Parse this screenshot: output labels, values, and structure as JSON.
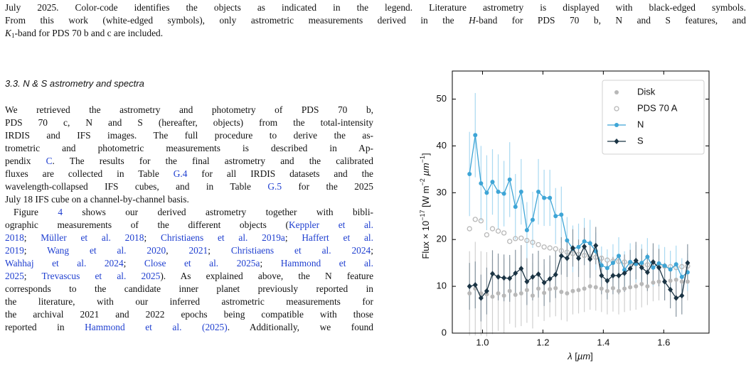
{
  "caption": [
    [
      "July 2025. Color-code identifies the objects as indicated in the legend. Literature astrometry is displayed with black-edged symbols."
    ],
    [
      "From this work (white-edged symbols), only astrometric measurements derived in the ",
      "H",
      "-band for PDS 70 b, N and S features, and"
    ],
    [
      "K",
      "1",
      "-band for PDS 70 b and c are included."
    ]
  ],
  "heading": "3.3. N & S astrometry and spectra",
  "paragraphs": [
    [
      [
        "We retrieved the astrometry and photometry of PDS 70 b,"
      ],
      [
        "PDS 70 c, N and S (hereafter, objects) from the total-intensity"
      ],
      [
        "IRDIS and IFS images. The full procedure to derive the as-"
      ],
      [
        "trometric and photometric measurements is described in Ap-"
      ],
      [
        "pendix ",
        "C",
        ". The results for the final astrometry and the calibrated"
      ],
      [
        "fluxes are collected in Table ",
        "G.4",
        " for all IRDIS datasets and the"
      ],
      [
        "wavelength-collapsed IFS cubes, and in Table ",
        "G.5",
        " for the 2025"
      ],
      [
        "July 18 IFS cube on a channel-by-channel basis."
      ]
    ],
    [
      [
        "Figure ",
        "4",
        " shows our derived astrometry together with bibli-"
      ],
      [
        "ographic measurements of the different objects (",
        "Keppler et al."
      ],
      [
        "2018",
        "; ",
        "Müller et al. 2018",
        "; ",
        "Christiaens et al. 2019a",
        "; ",
        "Haffert et al."
      ],
      [
        "2019",
        "; ",
        "Wang et al. 2020",
        ", ",
        "2021",
        "; ",
        "Christiaens et al. 2024",
        ";"
      ],
      [
        "Wahhaj et al. 2024",
        "; ",
        "Close et al. 2025a",
        "; ",
        "Hammond et al."
      ],
      [
        "2025",
        "; ",
        "Trevascus et al. 2025",
        "). As explained above, the N feature"
      ],
      [
        "corresponds to the candidate inner planet previously reported in"
      ],
      [
        "the literature, with our inferred astrometric measurements for"
      ],
      [
        "the archival 2021 and 2022 epochs being compatible with those"
      ],
      [
        "reported in ",
        "Hammond et al. (2025)",
        ". Additionally, we found"
      ]
    ]
  ],
  "chart_data": {
    "type": "errorbar",
    "xlabel": [
      "λ",
      " [",
      "µm",
      "]"
    ],
    "ylabel": [
      "Flux × 10",
      "−17",
      " [W m",
      "−2",
      " µm",
      "−1",
      "]"
    ],
    "xlim": [
      0.9,
      1.75
    ],
    "ylim": [
      0,
      56
    ],
    "xticks": [
      {
        "value": 1,
        "label": "1.0"
      },
      1.2,
      1.4,
      1.6
    ],
    "yticks": [
      0,
      10,
      20,
      30,
      40,
      50
    ],
    "legend": "upper right",
    "x": [
      0.957,
      0.976,
      0.995,
      1.014,
      1.033,
      1.052,
      1.071,
      1.09,
      1.109,
      1.128,
      1.147,
      1.166,
      1.185,
      1.204,
      1.223,
      1.242,
      1.261,
      1.28,
      1.299,
      1.318,
      1.337,
      1.356,
      1.375,
      1.394,
      1.413,
      1.432,
      1.451,
      1.47,
      1.489,
      1.508,
      1.527,
      1.546,
      1.565,
      1.584,
      1.603,
      1.622,
      1.641,
      1.66,
      1.679
    ],
    "series": [
      {
        "name": "Disk",
        "color": "#b8b8b8",
        "marker": "circle",
        "line": false,
        "values": [
          8.5,
          9.5,
          8.5,
          8.3,
          7.8,
          8.5,
          8,
          9,
          8.2,
          8.5,
          9.2,
          8,
          9.5,
          8.6,
          9.4,
          9.6,
          8.8,
          8.5,
          9,
          9.2,
          9.5,
          10,
          9.8,
          9.5,
          9,
          9.6,
          9,
          9.5,
          9.8,
          10,
          10.5,
          10,
          10.8,
          11,
          11,
          11.2,
          11.4,
          11,
          11
        ],
        "errors": [
          9,
          10,
          9,
          9,
          8,
          8,
          8,
          7,
          7,
          7,
          7,
          7,
          6,
          6,
          6,
          6,
          6,
          6,
          5,
          5,
          5,
          5,
          5,
          5,
          5,
          5,
          5,
          5,
          5,
          5,
          5,
          4,
          4,
          4,
          4,
          4,
          4,
          4,
          4
        ]
      },
      {
        "name": "PDS 70 A",
        "color": "#b8b8b8",
        "marker": "open-circle",
        "line": false,
        "values": [
          22.3,
          24.3,
          24,
          21,
          22.3,
          21.8,
          21.4,
          19.6,
          20.2,
          20.3,
          19.8,
          19.4,
          18.9,
          18.4,
          18.2,
          18,
          17.6,
          17.3,
          17,
          16.8,
          16.6,
          16.3,
          16.2,
          16,
          15.6,
          15.4,
          15.3,
          15.2,
          15,
          14.8,
          14.7,
          14.6,
          14.5,
          14.4,
          14.3,
          14.2,
          14,
          14.2,
          14.3
        ]
      },
      {
        "name": "N",
        "color": "#3ea5d6",
        "marker": "circle",
        "line": true,
        "values": [
          34,
          42.3,
          32,
          30,
          32.3,
          30.2,
          29.8,
          32.8,
          27,
          30.2,
          22,
          24.2,
          30.2,
          28.9,
          28.9,
          25,
          25.3,
          19.8,
          18,
          18.4,
          19.6,
          19.2,
          17.5,
          14.5,
          13.9,
          15,
          16.5,
          13.5,
          15.2,
          14.8,
          15,
          16.3,
          14,
          14.9,
          14.4,
          13.6,
          14.7,
          12,
          13
        ],
        "errors": [
          9,
          9,
          8,
          8,
          7,
          8,
          7,
          8,
          7,
          7,
          6,
          6,
          7,
          6,
          6,
          6,
          6,
          5,
          5,
          5,
          5,
          5,
          4,
          4,
          4,
          4,
          4,
          4,
          4,
          4,
          4,
          4,
          4,
          4,
          4,
          4,
          4,
          4,
          4
        ]
      },
      {
        "name": "S",
        "color": "#1b3444",
        "marker": "diamond",
        "line": true,
        "values": [
          10,
          10.3,
          7.5,
          9,
          12.7,
          12,
          11.8,
          11.7,
          12.8,
          13.8,
          11,
          12,
          12.6,
          10.8,
          11.6,
          12.5,
          16.5,
          16,
          18.2,
          16,
          18.5,
          15.8,
          18.7,
          12.3,
          11.2,
          12.3,
          12.3,
          12.8,
          13.8,
          15.5,
          14,
          13,
          15.2,
          14,
          11,
          9.3,
          7.5,
          8,
          15
        ],
        "errors": [
          5,
          5,
          5,
          5,
          5,
          5,
          5,
          5,
          5,
          5,
          5,
          5,
          5,
          5,
          5,
          5,
          4,
          4,
          4,
          4,
          4,
          4,
          4,
          4,
          4,
          4,
          4,
          4,
          4,
          4,
          4,
          4,
          4,
          4,
          4,
          4,
          4,
          4,
          4
        ]
      }
    ]
  }
}
